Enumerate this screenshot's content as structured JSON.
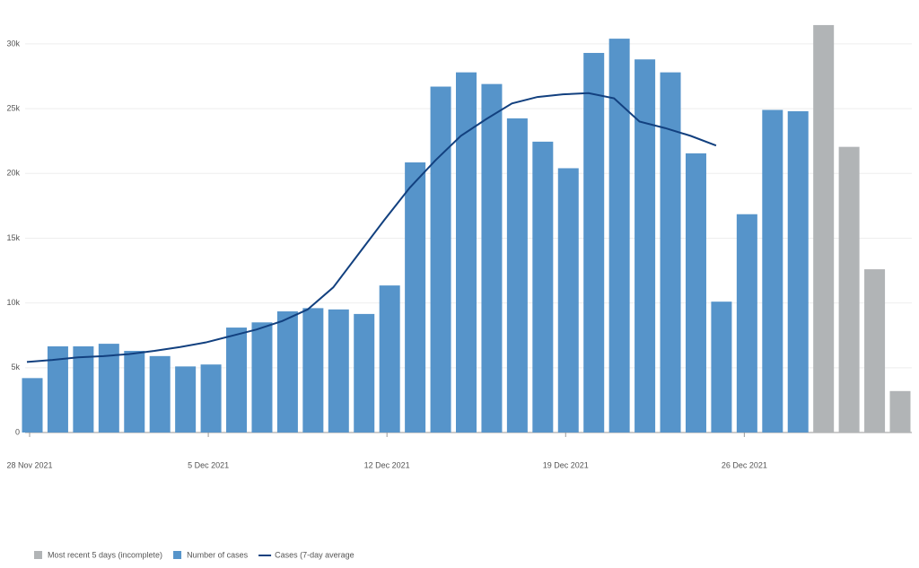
{
  "chart_data": {
    "type": "bar",
    "categories": [
      "28 Nov 2021",
      null,
      null,
      null,
      null,
      null,
      null,
      "5 Dec 2021",
      null,
      null,
      null,
      null,
      null,
      null,
      "12 Dec 2021",
      null,
      null,
      null,
      null,
      null,
      null,
      "19 Dec 2021",
      null,
      null,
      null,
      null,
      null,
      null,
      "26 Dec 2021",
      null,
      null,
      null,
      null,
      null,
      null
    ],
    "series": [
      {
        "name": "Most recent 5 days (incomplete)",
        "color": "#b1b4b6",
        "kind": "bar",
        "values": [
          null,
          null,
          null,
          null,
          null,
          null,
          null,
          null,
          null,
          null,
          null,
          null,
          null,
          null,
          null,
          null,
          null,
          null,
          null,
          null,
          null,
          null,
          null,
          null,
          null,
          null,
          null,
          null,
          null,
          null,
          null,
          31450,
          22050,
          12600,
          3200
        ]
      },
      {
        "name": "Number of cases",
        "color": "#5694ca",
        "kind": "bar",
        "values": [
          4200,
          6650,
          6650,
          6850,
          6300,
          5900,
          5100,
          5250,
          8100,
          8500,
          9350,
          9600,
          9500,
          9150,
          11350,
          20850,
          26700,
          27800,
          26900,
          24250,
          22450,
          20400,
          29300,
          30400,
          28800,
          27800,
          21550,
          10100,
          16850,
          24900,
          24800,
          null,
          null,
          null,
          null
        ]
      },
      {
        "name": "Cases (7-day average",
        "color": "#12407f",
        "kind": "line",
        "values": [
          5450,
          5600,
          5800,
          5900,
          6050,
          6300,
          6600,
          6950,
          7450,
          7950,
          8600,
          9500,
          11200,
          13800,
          16400,
          18900,
          21000,
          22900,
          24200,
          25400,
          25900,
          26100,
          26200,
          25800,
          24000,
          23500,
          22900,
          22150,
          null,
          null,
          null,
          null,
          null,
          null,
          null
        ]
      }
    ],
    "ylim": [
      0,
      32000
    ],
    "yticks": [
      0,
      {
        "value": 5000,
        "label": "5k"
      },
      {
        "value": 10000,
        "label": "10k"
      },
      {
        "value": 15000,
        "label": "15k"
      },
      {
        "value": 20000,
        "label": "20k"
      },
      {
        "value": 25000,
        "label": "25k"
      },
      {
        "value": 30000,
        "label": "30k"
      }
    ],
    "grid": true
  }
}
